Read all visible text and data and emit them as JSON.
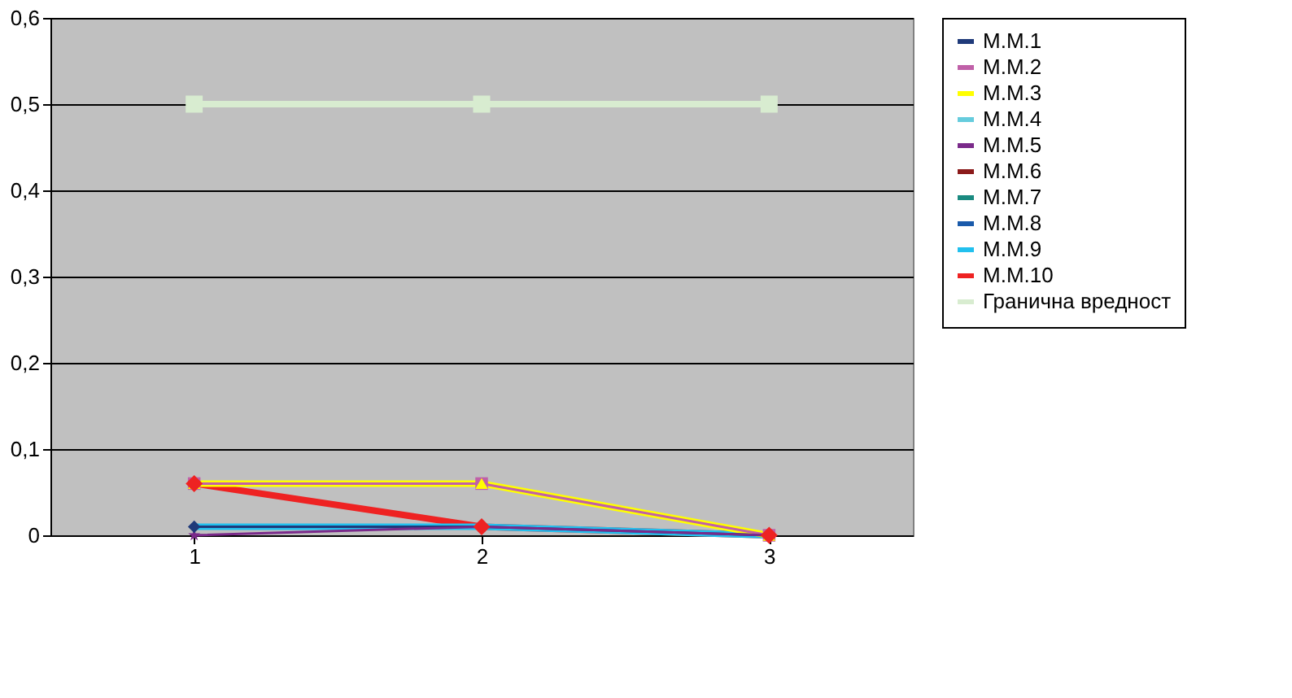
{
  "chart_data": {
    "type": "line",
    "categories": [
      "1",
      "2",
      "3"
    ],
    "ylim": [
      0,
      0.6
    ],
    "yticks": [
      {
        "value": 0,
        "label": "0"
      },
      {
        "value": 0.1,
        "label": "0,1"
      },
      {
        "value": 0.2,
        "label": "0,2"
      },
      {
        "value": 0.3,
        "label": "0,3"
      },
      {
        "value": 0.4,
        "label": "0,4"
      },
      {
        "value": 0.5,
        "label": "0,5"
      },
      {
        "value": 0.6,
        "label": "0,6"
      }
    ],
    "grid": "y",
    "legend": "right",
    "series": [
      {
        "name": "М.М.1",
        "color": "#1f3a7a",
        "marker": "diamond",
        "values": [
          0.01,
          0.01,
          0
        ]
      },
      {
        "name": "М.М.2",
        "color": "#c060a8",
        "marker": "square",
        "values": [
          0.06,
          0.06,
          0
        ]
      },
      {
        "name": "М.М.3",
        "color": "#ffff00",
        "marker": "triangle",
        "values": [
          0.06,
          0.06,
          0
        ]
      },
      {
        "name": "М.М.4",
        "color": "#66ccdd",
        "marker": "cross",
        "values": [
          null,
          null,
          null
        ]
      },
      {
        "name": "М.М.5",
        "color": "#7a2a8a",
        "marker": "star",
        "values": [
          0,
          0.01,
          0
        ]
      },
      {
        "name": "М.М.6",
        "color": "#8b1a1a",
        "marker": "circle",
        "values": [
          null,
          null,
          null
        ]
      },
      {
        "name": "М.М.7",
        "color": "#1a8a80",
        "marker": "cross",
        "values": [
          null,
          null,
          null
        ]
      },
      {
        "name": "М.М.8",
        "color": "#1a5aaa",
        "marker": "none",
        "values": [
          null,
          null,
          null
        ]
      },
      {
        "name": "М.М.9",
        "color": "#22c0ee",
        "marker": "none",
        "values": [
          0.01,
          0.01,
          0
        ]
      },
      {
        "name": "М.М.10",
        "color": "#ee2222",
        "marker": "diamond",
        "values": [
          0.06,
          0.01,
          0
        ]
      },
      {
        "name": "Гранична вредност",
        "color": "#d8ecd0",
        "marker": "square",
        "values": [
          0.5,
          0.5,
          0.5
        ]
      }
    ]
  }
}
